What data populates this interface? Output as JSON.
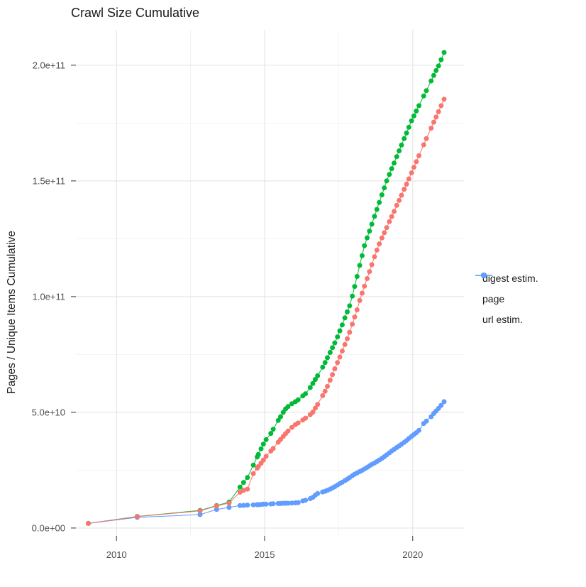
{
  "chart_data": {
    "type": "scatter",
    "title": "Crawl Size Cumulative",
    "xlabel": "",
    "ylabel": "Pages / Unique Items Cumulative",
    "value_unit": "items, values stored in billions (1e9)",
    "xlim": [
      2008.63,
      2021.73
    ],
    "ylim_billions": [
      -3.4,
      215.3
    ],
    "grid": "on",
    "x_ticks": [
      {
        "v": 2010,
        "label": "2010"
      },
      {
        "v": 2015,
        "label": "2015"
      },
      {
        "v": 2020,
        "label": "2020"
      }
    ],
    "x_minor_ticks": [
      2012.5,
      2017.5
    ],
    "y_ticks": [
      {
        "v": 0,
        "label": "0.0e+00"
      },
      {
        "v": 50,
        "label": "5.0e+10"
      },
      {
        "v": 100,
        "label": "1.0e+11"
      },
      {
        "v": 150,
        "label": "1.5e+11"
      },
      {
        "v": 200,
        "label": "2.0e+11"
      }
    ],
    "y_minor_ticks": [
      25,
      75,
      125,
      175
    ],
    "legend_position": "right",
    "series_draw_order": [
      "page",
      "url estim.",
      "digest estim."
    ],
    "series": [
      {
        "name": "digest estim.",
        "color": "#F8766D",
        "points": [
          [
            2009.05,
            2.0
          ],
          [
            2010.7,
            4.9
          ],
          [
            2012.82,
            7.4
          ],
          [
            2013.38,
            9.5
          ],
          [
            2013.8,
            10.8
          ],
          [
            2014.17,
            15.5
          ],
          [
            2014.29,
            16.3
          ],
          [
            2014.42,
            16.8
          ],
          [
            2014.62,
            23.5
          ],
          [
            2014.75,
            25.9
          ],
          [
            2014.79,
            26.6
          ],
          [
            2014.88,
            28.0
          ],
          [
            2014.96,
            29.4
          ],
          [
            2015.05,
            31.0
          ],
          [
            2015.21,
            33.3
          ],
          [
            2015.29,
            34.4
          ],
          [
            2015.46,
            37.1
          ],
          [
            2015.54,
            38.3
          ],
          [
            2015.63,
            39.6
          ],
          [
            2015.71,
            40.8
          ],
          [
            2015.79,
            41.9
          ],
          [
            2015.92,
            43.5
          ],
          [
            2016.04,
            44.7
          ],
          [
            2016.13,
            45.4
          ],
          [
            2016.29,
            46.7
          ],
          [
            2016.38,
            47.5
          ],
          [
            2016.54,
            49.0
          ],
          [
            2016.63,
            50.1
          ],
          [
            2016.71,
            51.8
          ],
          [
            2016.79,
            53.4
          ],
          [
            2016.96,
            57.2
          ],
          [
            2017.04,
            59.1
          ],
          [
            2017.12,
            61.2
          ],
          [
            2017.21,
            63.9
          ],
          [
            2017.29,
            66.3
          ],
          [
            2017.37,
            68.8
          ],
          [
            2017.46,
            71.5
          ],
          [
            2017.54,
            73.9
          ],
          [
            2017.62,
            76.5
          ],
          [
            2017.71,
            79.3
          ],
          [
            2017.79,
            81.8
          ],
          [
            2017.87,
            84.6
          ],
          [
            2017.96,
            88.1
          ],
          [
            2018.04,
            91.2
          ],
          [
            2018.12,
            94.3
          ],
          [
            2018.21,
            98.3
          ],
          [
            2018.29,
            101.5
          ],
          [
            2018.37,
            104.5
          ],
          [
            2018.46,
            107.8
          ],
          [
            2018.54,
            110.8
          ],
          [
            2018.62,
            113.8
          ],
          [
            2018.71,
            117.2
          ],
          [
            2018.79,
            120.1
          ],
          [
            2018.87,
            122.8
          ],
          [
            2018.96,
            125.4
          ],
          [
            2019.04,
            127.6
          ],
          [
            2019.12,
            129.8
          ],
          [
            2019.21,
            132.4
          ],
          [
            2019.29,
            134.6
          ],
          [
            2019.37,
            136.8
          ],
          [
            2019.46,
            139.4
          ],
          [
            2019.54,
            141.6
          ],
          [
            2019.62,
            143.8
          ],
          [
            2019.71,
            146.4
          ],
          [
            2019.79,
            148.6
          ],
          [
            2019.87,
            150.9
          ],
          [
            2019.96,
            153.5
          ],
          [
            2020.04,
            155.9
          ],
          [
            2020.12,
            158.3
          ],
          [
            2020.21,
            160.9
          ],
          [
            2020.37,
            165.6
          ],
          [
            2020.46,
            168.3
          ],
          [
            2020.62,
            172.8
          ],
          [
            2020.71,
            175.4
          ],
          [
            2020.79,
            177.6
          ],
          [
            2020.87,
            179.9
          ],
          [
            2020.96,
            182.5
          ],
          [
            2021.06,
            185.3
          ]
        ]
      },
      {
        "name": "page",
        "color": "#00BA38",
        "points": [
          [
            2009.05,
            2.0
          ],
          [
            2010.7,
            5.0
          ],
          [
            2012.82,
            7.6
          ],
          [
            2013.38,
            9.7
          ],
          [
            2013.8,
            11.2
          ],
          [
            2014.17,
            17.7
          ],
          [
            2014.29,
            19.7
          ],
          [
            2014.42,
            21.8
          ],
          [
            2014.62,
            27.2
          ],
          [
            2014.75,
            30.7
          ],
          [
            2014.79,
            31.8
          ],
          [
            2014.88,
            34.2
          ],
          [
            2014.96,
            36.3
          ],
          [
            2015.05,
            38.2
          ],
          [
            2015.21,
            40.9
          ],
          [
            2015.29,
            42.7
          ],
          [
            2015.46,
            46.5
          ],
          [
            2015.54,
            48.1
          ],
          [
            2015.63,
            50.0
          ],
          [
            2015.71,
            51.5
          ],
          [
            2015.79,
            52.5
          ],
          [
            2015.92,
            53.7
          ],
          [
            2016.04,
            54.6
          ],
          [
            2016.13,
            55.4
          ],
          [
            2016.29,
            57.1
          ],
          [
            2016.38,
            58.0
          ],
          [
            2016.54,
            60.7
          ],
          [
            2016.63,
            62.5
          ],
          [
            2016.71,
            64.2
          ],
          [
            2016.79,
            65.8
          ],
          [
            2016.96,
            69.5
          ],
          [
            2017.04,
            71.5
          ],
          [
            2017.12,
            73.6
          ],
          [
            2017.21,
            75.9
          ],
          [
            2017.29,
            77.9
          ],
          [
            2017.37,
            80.0
          ],
          [
            2017.46,
            82.6
          ],
          [
            2017.54,
            85.2
          ],
          [
            2017.62,
            87.8
          ],
          [
            2017.71,
            90.8
          ],
          [
            2017.79,
            93.4
          ],
          [
            2017.87,
            96.0
          ],
          [
            2017.96,
            100.2
          ],
          [
            2018.04,
            104.4
          ],
          [
            2018.12,
            108.7
          ],
          [
            2018.21,
            113.5
          ],
          [
            2018.29,
            117.7
          ],
          [
            2018.37,
            122.0
          ],
          [
            2018.46,
            125.4
          ],
          [
            2018.54,
            128.3
          ],
          [
            2018.62,
            131.3
          ],
          [
            2018.71,
            134.7
          ],
          [
            2018.79,
            137.7
          ],
          [
            2018.87,
            140.7
          ],
          [
            2018.96,
            144.0
          ],
          [
            2019.04,
            147.0
          ],
          [
            2019.12,
            150.0
          ],
          [
            2019.21,
            152.8
          ],
          [
            2019.29,
            155.3
          ],
          [
            2019.37,
            157.7
          ],
          [
            2019.46,
            160.5
          ],
          [
            2019.54,
            163.0
          ],
          [
            2019.62,
            165.5
          ],
          [
            2019.71,
            168.3
          ],
          [
            2019.79,
            170.7
          ],
          [
            2019.87,
            173.2
          ],
          [
            2019.96,
            176.0
          ],
          [
            2020.04,
            178.1
          ],
          [
            2020.12,
            180.2
          ],
          [
            2020.21,
            182.5
          ],
          [
            2020.37,
            186.7
          ],
          [
            2020.46,
            189.0
          ],
          [
            2020.62,
            193.2
          ],
          [
            2020.71,
            195.6
          ],
          [
            2020.79,
            197.7
          ],
          [
            2020.87,
            199.7
          ],
          [
            2020.96,
            202.4
          ],
          [
            2021.06,
            205.5
          ]
        ]
      },
      {
        "name": "url estim.",
        "color": "#619CFF",
        "points": [
          [
            2009.05,
            2.0
          ],
          [
            2010.7,
            4.6
          ],
          [
            2012.82,
            5.8
          ],
          [
            2013.38,
            8.0
          ],
          [
            2013.8,
            8.9
          ],
          [
            2014.17,
            9.7
          ],
          [
            2014.29,
            9.8
          ],
          [
            2014.42,
            9.9
          ],
          [
            2014.62,
            10.0
          ],
          [
            2014.75,
            10.1
          ],
          [
            2014.79,
            10.1
          ],
          [
            2014.88,
            10.2
          ],
          [
            2014.96,
            10.3
          ],
          [
            2015.05,
            10.3
          ],
          [
            2015.21,
            10.4
          ],
          [
            2015.29,
            10.5
          ],
          [
            2015.46,
            10.6
          ],
          [
            2015.54,
            10.6
          ],
          [
            2015.63,
            10.7
          ],
          [
            2015.71,
            10.7
          ],
          [
            2015.79,
            10.7
          ],
          [
            2015.92,
            10.8
          ],
          [
            2016.04,
            10.9
          ],
          [
            2016.13,
            11.0
          ],
          [
            2016.29,
            11.7
          ],
          [
            2016.38,
            12.0
          ],
          [
            2016.54,
            12.7
          ],
          [
            2016.63,
            13.3
          ],
          [
            2016.71,
            14.2
          ],
          [
            2016.79,
            14.9
          ],
          [
            2016.96,
            15.6
          ],
          [
            2017.04,
            15.9
          ],
          [
            2017.12,
            16.3
          ],
          [
            2017.21,
            16.8
          ],
          [
            2017.29,
            17.3
          ],
          [
            2017.37,
            17.9
          ],
          [
            2017.46,
            18.6
          ],
          [
            2017.54,
            19.2
          ],
          [
            2017.62,
            19.8
          ],
          [
            2017.71,
            20.5
          ],
          [
            2017.79,
            21.1
          ],
          [
            2017.87,
            21.8
          ],
          [
            2017.96,
            22.6
          ],
          [
            2018.04,
            23.3
          ],
          [
            2018.12,
            23.8
          ],
          [
            2018.21,
            24.4
          ],
          [
            2018.29,
            24.9
          ],
          [
            2018.37,
            25.5
          ],
          [
            2018.46,
            26.2
          ],
          [
            2018.54,
            26.9
          ],
          [
            2018.62,
            27.5
          ],
          [
            2018.71,
            28.1
          ],
          [
            2018.79,
            28.7
          ],
          [
            2018.87,
            29.4
          ],
          [
            2018.96,
            30.1
          ],
          [
            2019.04,
            30.8
          ],
          [
            2019.12,
            31.6
          ],
          [
            2019.21,
            32.5
          ],
          [
            2019.29,
            33.3
          ],
          [
            2019.37,
            34.0
          ],
          [
            2019.46,
            34.8
          ],
          [
            2019.54,
            35.5
          ],
          [
            2019.62,
            36.2
          ],
          [
            2019.71,
            37.0
          ],
          [
            2019.79,
            37.8
          ],
          [
            2019.87,
            38.7
          ],
          [
            2019.96,
            39.6
          ],
          [
            2020.04,
            40.4
          ],
          [
            2020.12,
            41.2
          ],
          [
            2020.21,
            42.2
          ],
          [
            2020.37,
            45.2
          ],
          [
            2020.46,
            46.2
          ],
          [
            2020.62,
            48.1
          ],
          [
            2020.71,
            49.5
          ],
          [
            2020.79,
            50.6
          ],
          [
            2020.87,
            51.7
          ],
          [
            2020.96,
            53.0
          ],
          [
            2021.06,
            54.6
          ]
        ]
      }
    ],
    "style": {
      "panel_background": "#ffffff",
      "grid_major_color": "#e4e4e4",
      "grid_minor_color": "#f0f0f0",
      "tick_color": "#333333",
      "tick_label_color": "#4d4d4d",
      "text_color": "#1a1a1a"
    }
  }
}
